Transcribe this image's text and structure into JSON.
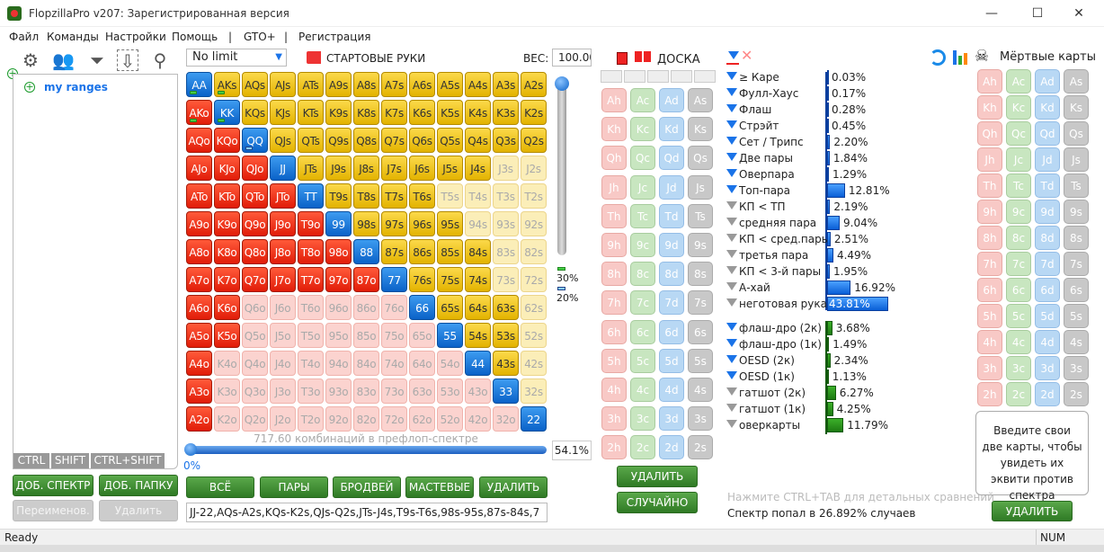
{
  "window": {
    "title": "FlopzillaPro v207: Зарегистрированная версия",
    "min": "—",
    "max": "☐",
    "close": "✕"
  },
  "menu": [
    "Файл",
    "Команды",
    "Настройки",
    "Помощь",
    "|",
    "GTO+",
    "|",
    "Регистрация"
  ],
  "left": {
    "tree_root": "my ranges",
    "modkeys": [
      "CTRL",
      "SHIFT",
      "CTRL+SHIFT"
    ],
    "add_range": "ДОБ. СПЕКТР",
    "add_folder": "ДОБ. ПАПКУ",
    "rename": "Переименов.",
    "delete": "Удалить"
  },
  "hands": {
    "game_select": "No limit",
    "title": "СТАРТОВЫЕ РУКИ",
    "weight_label": "ВЕС:",
    "weight_value": "100.00",
    "rows": [
      [
        "AA",
        "AKs",
        "AQs",
        "AJs",
        "ATs",
        "A9s",
        "A8s",
        "A7s",
        "A6s",
        "A5s",
        "A4s",
        "A3s",
        "A2s"
      ],
      [
        "AKo",
        "KK",
        "KQs",
        "KJs",
        "KTs",
        "K9s",
        "K8s",
        "K7s",
        "K6s",
        "K5s",
        "K4s",
        "K3s",
        "K2s"
      ],
      [
        "AQo",
        "KQo",
        "QQ",
        "QJs",
        "QTs",
        "Q9s",
        "Q8s",
        "Q7s",
        "Q6s",
        "Q5s",
        "Q4s",
        "Q3s",
        "Q2s"
      ],
      [
        "AJo",
        "KJo",
        "QJo",
        "JJ",
        "JTs",
        "J9s",
        "J8s",
        "J7s",
        "J6s",
        "J5s",
        "J4s",
        "J3s",
        "J2s"
      ],
      [
        "ATo",
        "KTo",
        "QTo",
        "JTo",
        "TT",
        "T9s",
        "T8s",
        "T7s",
        "T6s",
        "T5s",
        "T4s",
        "T3s",
        "T2s"
      ],
      [
        "A9o",
        "K9o",
        "Q9o",
        "J9o",
        "T9o",
        "99",
        "98s",
        "97s",
        "96s",
        "95s",
        "94s",
        "93s",
        "92s"
      ],
      [
        "A8o",
        "K8o",
        "Q8o",
        "J8o",
        "T8o",
        "98o",
        "88",
        "87s",
        "86s",
        "85s",
        "84s",
        "83s",
        "82s"
      ],
      [
        "A7o",
        "K7o",
        "Q7o",
        "J7o",
        "T7o",
        "97o",
        "87o",
        "77",
        "76s",
        "75s",
        "74s",
        "73s",
        "72s"
      ],
      [
        "A6o",
        "K6o",
        "Q6o",
        "J6o",
        "T6o",
        "96o",
        "86o",
        "76o",
        "66",
        "65s",
        "64s",
        "63s",
        "62s"
      ],
      [
        "A5o",
        "K5o",
        "Q5o",
        "J5o",
        "T5o",
        "95o",
        "85o",
        "75o",
        "65o",
        "55",
        "54s",
        "53s",
        "52s"
      ],
      [
        "A4o",
        "K4o",
        "Q4o",
        "J4o",
        "T4o",
        "94o",
        "84o",
        "74o",
        "64o",
        "54o",
        "44",
        "43s",
        "42s"
      ],
      [
        "A3o",
        "K3o",
        "Q3o",
        "J3o",
        "T3o",
        "93o",
        "83o",
        "73o",
        "63o",
        "53o",
        "43o",
        "33",
        "32s"
      ],
      [
        "A2o",
        "K2o",
        "Q2o",
        "J2o",
        "T2o",
        "92o",
        "82o",
        "72o",
        "62o",
        "52o",
        "42o",
        "32o",
        "22"
      ]
    ],
    "unselected": [
      "J3s",
      "J2s",
      "T5s",
      "T4s",
      "T3s",
      "T2s",
      "94s",
      "93s",
      "92s",
      "83s",
      "82s",
      "73s",
      "72s",
      "62s",
      "52s",
      "42s",
      "32s",
      "Q6o",
      "J6o",
      "T6o",
      "96o",
      "86o",
      "76o",
      "Q5o",
      "J5o",
      "T5o",
      "95o",
      "85o",
      "75o",
      "65o",
      "K4o",
      "Q4o",
      "J4o",
      "T4o",
      "94o",
      "84o",
      "74o",
      "64o",
      "54o",
      "K3o",
      "Q3o",
      "J3o",
      "T3o",
      "93o",
      "83o",
      "73o",
      "63o",
      "53o",
      "43o",
      "K2o",
      "Q2o",
      "J2o",
      "T2o",
      "92o",
      "82o",
      "72o",
      "62o",
      "52o",
      "42o",
      "32o"
    ],
    "marker_green": [
      "AA",
      "AKs",
      "AKo",
      "KK"
    ],
    "marker_blue": [
      "QQ"
    ],
    "combos_text": "717.60 комбинаций в префлоп-спектре",
    "slider_min": "0%",
    "range_percent": "54.1%",
    "slider_fraction": 1.0,
    "legend_green": "30%",
    "legend_blue": "20%",
    "buttons": [
      "ВСЁ",
      "ПАРЫ",
      "БРОДВЕЙ",
      "МАСТЕВЫЕ",
      "УДАЛИТЬ"
    ],
    "range_text": "JJ-22,AQs-A2s,KQs-K2s,QJs-Q2s,JTs-J4s,T9s-T6s,98s-95s,87s-84s,7"
  },
  "board": {
    "title": "ДОСКА",
    "ranks": [
      "A",
      "K",
      "Q",
      "J",
      "T",
      "9",
      "8",
      "7",
      "6",
      "5",
      "4",
      "3",
      "2"
    ],
    "suits": [
      "h",
      "c",
      "d",
      "s"
    ],
    "delete": "УДАЛИТЬ",
    "random": "СЛУЧАЙНО"
  },
  "stats": {
    "made": [
      {
        "label": "≥ Каре",
        "value": "0.03%",
        "pct": 0.03,
        "active": true
      },
      {
        "label": "Фулл-Хаус",
        "value": "0.17%",
        "pct": 0.17,
        "active": true
      },
      {
        "label": "Флаш",
        "value": "0.28%",
        "pct": 0.28,
        "active": true
      },
      {
        "label": "Стрэйт",
        "value": "0.45%",
        "pct": 0.45,
        "active": true
      },
      {
        "label": "Сет / Трипс",
        "value": "2.20%",
        "pct": 2.2,
        "active": true
      },
      {
        "label": "Две пары",
        "value": "1.84%",
        "pct": 1.84,
        "active": true
      },
      {
        "label": "Оверпара",
        "value": "1.29%",
        "pct": 1.29,
        "active": true
      },
      {
        "label": "Топ-пара",
        "value": "12.81%",
        "pct": 12.81,
        "active": true
      },
      {
        "label": "КП < ТП",
        "value": "2.19%",
        "pct": 2.19,
        "active": false
      },
      {
        "label": "средняя пара",
        "value": "9.04%",
        "pct": 9.04,
        "active": false
      },
      {
        "label": "КП < сред.пары",
        "value": "2.51%",
        "pct": 2.51,
        "active": false
      },
      {
        "label": "третья пара",
        "value": "4.49%",
        "pct": 4.49,
        "active": false
      },
      {
        "label": "КП < 3-й пары",
        "value": "1.95%",
        "pct": 1.95,
        "active": false
      },
      {
        "label": "А-хай",
        "value": "16.92%",
        "pct": 16.92,
        "active": false
      },
      {
        "label": "неготовая рука",
        "value": "43.81%",
        "pct": 43.81,
        "active": false
      }
    ],
    "draws": [
      {
        "label": "флаш-дро (2к)",
        "value": "3.68%",
        "pct": 3.68,
        "active": true
      },
      {
        "label": "флаш-дро (1к)",
        "value": "1.49%",
        "pct": 1.49,
        "active": true
      },
      {
        "label": "OESD (2к)",
        "value": "2.34%",
        "pct": 2.34,
        "active": true
      },
      {
        "label": "OESD (1к)",
        "value": "1.13%",
        "pct": 1.13,
        "active": true
      },
      {
        "label": "гатшот (2к)",
        "value": "6.27%",
        "pct": 6.27,
        "active": false
      },
      {
        "label": "гатшот (1к)",
        "value": "4.25%",
        "pct": 4.25,
        "active": false
      },
      {
        "label": "оверкарты",
        "value": "11.79%",
        "pct": 11.79,
        "active": false
      }
    ],
    "hint": "Нажмите CTRL+TAB для детальных сравнений",
    "hit": "Спектр попал в 26.892% случаев"
  },
  "dead": {
    "title": "Мёртвые карты",
    "equity_hint": "Введите свои две карты, чтобы увидеть их эквити против спектра",
    "delete": "УДАЛИТЬ"
  },
  "status": {
    "left": "Ready",
    "num": "NUM"
  },
  "colors": {
    "pair": "#0a62c8",
    "suited": "#e3b300",
    "offsuit": "#e11c08",
    "button": "#2f7a25",
    "accent": "#1a73e8"
  }
}
